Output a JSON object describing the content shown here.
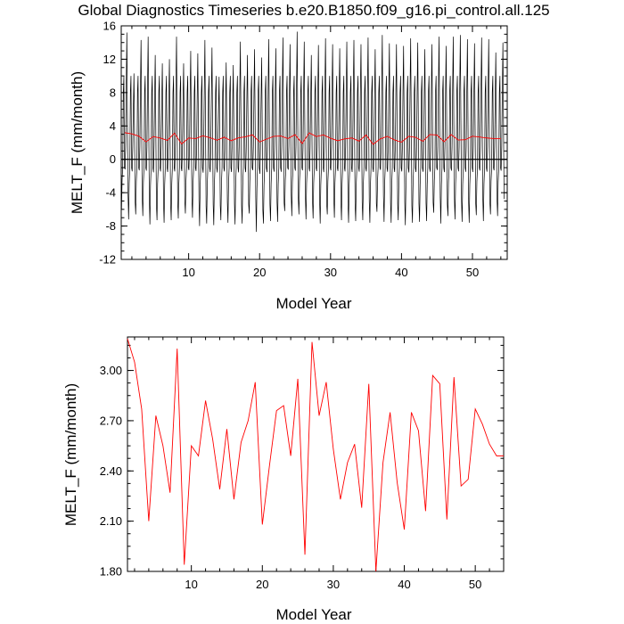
{
  "chart_data": [
    {
      "type": "line",
      "title": "Global Diagnostics Timeseries b.e20.B1850.f09_g16.pi_control.all.125",
      "xlabel": "Model Year",
      "ylabel": "MELT_F (mm/month)",
      "xlim": [
        0.5,
        54.9
      ],
      "ylim": [
        -12,
        16
      ],
      "xticks": [
        10,
        20,
        30,
        40,
        50
      ],
      "yticks": [
        -12,
        -8,
        -4,
        0,
        4,
        8,
        12,
        16
      ],
      "zero_line": true,
      "series": [
        {
          "name": "",
          "color": "#000000",
          "monthly_peaks": [
            15.2,
            10.3,
            14.3,
            14.7,
            12.5,
            11.5,
            12.0,
            14.7,
            11.5,
            13.0,
            12.7,
            14.3,
            13.4,
            9.9,
            11.6,
            11.3,
            14.1,
            12.5,
            13.2,
            12.2,
            14.4,
            13.3,
            14.6,
            13.8,
            15.3,
            14.1,
            12.5,
            13.7,
            14.5,
            13.8,
            13.3,
            14.1,
            14.3,
            13.8,
            14.6,
            13.2,
            14.9,
            13.9,
            13.8,
            13.6,
            14.5,
            14.0,
            13.2,
            13.8,
            14.7,
            13.6,
            14.7,
            14.9,
            14.4,
            13.9,
            14.6,
            14.4,
            12.8,
            14.0
          ],
          "monthly_troughs": [
            -6.0,
            -7.2,
            -6.6,
            -6.8,
            -7.8,
            -7.3,
            -7.6,
            -7.3,
            -7.1,
            -6.5,
            -7.0,
            -8.0,
            -7.7,
            -7.9,
            -7.3,
            -7.6,
            -7.8,
            -7.7,
            -6.5,
            -8.7,
            -7.7,
            -7.4,
            -7.5,
            -6.2,
            -6.8,
            -6.6,
            -7.2,
            -7.1,
            -7.7,
            -6.6,
            -7.0,
            -7.3,
            -7.6,
            -7.4,
            -7.3,
            -7.6,
            -6.3,
            -7.5,
            -7.6,
            -7.3,
            -7.9,
            -7.6,
            -7.5,
            -7.4,
            -6.4,
            -7.7,
            -6.8,
            -7.2,
            -7.5,
            -7.6,
            -6.7,
            -7.4,
            -6.6,
            -6.8
          ],
          "secondary_peak": 10.0,
          "secondary_trough": -1.0
        },
        {
          "name": "",
          "color": "#ff0000",
          "x": [
            1,
            2,
            3,
            4,
            5,
            6,
            7,
            8,
            9,
            10,
            11,
            12,
            13,
            14,
            15,
            16,
            17,
            18,
            19,
            20,
            21,
            22,
            23,
            24,
            25,
            26,
            27,
            28,
            29,
            30,
            31,
            32,
            33,
            34,
            35,
            36,
            37,
            38,
            39,
            40,
            41,
            42,
            43,
            44,
            45,
            46,
            47,
            48,
            49,
            50,
            51,
            52,
            53,
            54
          ],
          "values": [
            3.19,
            3.05,
            2.77,
            2.1,
            2.73,
            2.55,
            2.27,
            3.13,
            1.84,
            2.55,
            2.49,
            2.82,
            2.59,
            2.29,
            2.65,
            2.23,
            2.57,
            2.7,
            2.93,
            2.08,
            2.43,
            2.76,
            2.79,
            2.49,
            2.95,
            1.9,
            3.17,
            2.73,
            2.93,
            2.53,
            2.23,
            2.45,
            2.56,
            2.18,
            2.92,
            1.8,
            2.45,
            2.75,
            2.33,
            2.05,
            2.75,
            2.64,
            2.16,
            2.97,
            2.92,
            2.11,
            2.96,
            2.31,
            2.35,
            2.77,
            2.68,
            2.56,
            2.49,
            2.49
          ]
        }
      ]
    },
    {
      "type": "line",
      "title": "",
      "xlabel": "Model Year",
      "ylabel": "MELT_F (mm/month)",
      "xlim": [
        1,
        54
      ],
      "ylim": [
        1.8,
        3.2
      ],
      "xticks": [
        10,
        20,
        30,
        40,
        50
      ],
      "yticks": [
        1.8,
        2.1,
        2.4,
        2.7,
        3.0
      ],
      "ytick_labels": [
        "1.80",
        "2.10",
        "2.40",
        "2.70",
        "3.00"
      ],
      "series": [
        {
          "name": "",
          "color": "#ff0000",
          "x": [
            1,
            2,
            3,
            4,
            5,
            6,
            7,
            8,
            9,
            10,
            11,
            12,
            13,
            14,
            15,
            16,
            17,
            18,
            19,
            20,
            21,
            22,
            23,
            24,
            25,
            26,
            27,
            28,
            29,
            30,
            31,
            32,
            33,
            34,
            35,
            36,
            37,
            38,
            39,
            40,
            41,
            42,
            43,
            44,
            45,
            46,
            47,
            48,
            49,
            50,
            51,
            52,
            53,
            54
          ],
          "values": [
            3.19,
            3.05,
            2.77,
            2.1,
            2.73,
            2.55,
            2.27,
            3.13,
            1.84,
            2.55,
            2.49,
            2.82,
            2.59,
            2.29,
            2.65,
            2.23,
            2.57,
            2.7,
            2.93,
            2.08,
            2.43,
            2.76,
            2.79,
            2.49,
            2.95,
            1.9,
            3.17,
            2.73,
            2.93,
            2.53,
            2.23,
            2.45,
            2.56,
            2.18,
            2.92,
            1.8,
            2.45,
            2.75,
            2.33,
            2.05,
            2.75,
            2.64,
            2.16,
            2.97,
            2.92,
            2.11,
            2.96,
            2.31,
            2.35,
            2.77,
            2.68,
            2.56,
            2.49,
            2.49
          ]
        }
      ]
    }
  ]
}
